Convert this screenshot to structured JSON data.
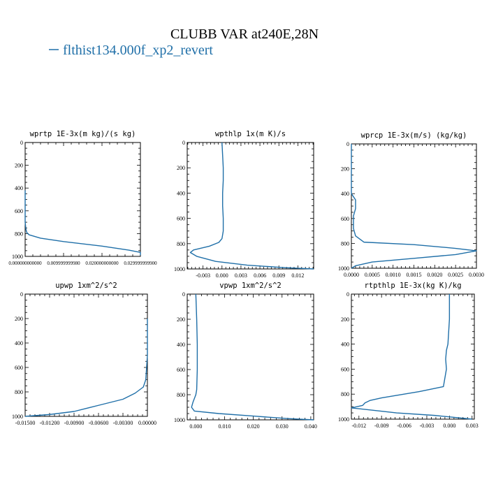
{
  "figure": {
    "title": "CLUBB VAR at240E,28N",
    "legend_entry": "flthist134.000f_xp2_revert",
    "line_color": "#1f6fa8"
  },
  "chart_data": [
    {
      "type": "line",
      "title": "wprtp  1E-3x(m kg)/(s kg)",
      "xlim": [
        0,
        0.03
      ],
      "ylim": [
        1000,
        0
      ],
      "xticks": [
        0,
        0.01,
        0.02,
        0.03
      ],
      "xtick_labels": [
        "0.000000000000",
        "0.009999999980",
        "0.020000000000",
        "0.029999999900"
      ],
      "yticks": [
        0,
        200,
        400,
        600,
        800,
        1000
      ],
      "ytick_labels": [
        "0",
        "200",
        "400",
        "600",
        "800",
        "1000"
      ],
      "series": [
        {
          "x": [
            0,
            0,
            0,
            0,
            0.0002,
            0.0004,
            0.001,
            0.004,
            0.01,
            0.02,
            0.027,
            0.03,
            0.03
          ],
          "y": [
            420,
            500,
            600,
            700,
            760,
            790,
            810,
            840,
            870,
            910,
            945,
            965,
            990
          ]
        }
      ]
    },
    {
      "type": "line",
      "title": "wpthlp  1x(m K)/s",
      "xlim": [
        -0.0055,
        0.0145
      ],
      "ylim": [
        1000,
        0
      ],
      "xticks": [
        -0.003,
        0,
        0.003,
        0.006,
        0.009,
        0.012
      ],
      "xtick_labels": [
        "-0.003",
        "0.000",
        "0.003",
        "0.006",
        "0.009",
        "0.012"
      ],
      "yticks": [
        0,
        200,
        400,
        600,
        800,
        1000
      ],
      "ytick_labels": [
        "0",
        "200",
        "400",
        "600",
        "800",
        "1000"
      ],
      "series": [
        {
          "x": [
            0,
            0.0001,
            0.0002,
            0.0002,
            0.0001,
            0.0001,
            0.0002,
            0.0002,
            0,
            -0.0005,
            -0.002,
            -0.0045,
            -0.005,
            -0.004,
            -0.001,
            0.004,
            0.01,
            0.0145
          ],
          "y": [
            0,
            100,
            200,
            300,
            400,
            500,
            600,
            700,
            760,
            790,
            820,
            850,
            870,
            900,
            940,
            970,
            990,
            1000
          ]
        }
      ]
    },
    {
      "type": "line",
      "title": "wprcp  1E-3x(m/s) (kg/kg)",
      "xlim": [
        0,
        0.003
      ],
      "ylim": [
        1000,
        0
      ],
      "xticks": [
        0,
        0.0005,
        0.001,
        0.0015,
        0.002,
        0.0025,
        0.003
      ],
      "xtick_labels": [
        "0.0000",
        "0.0005",
        "0.0010",
        "0.0015",
        "0.0020",
        "0.0025",
        "0.0030"
      ],
      "yticks": [
        0,
        200,
        400,
        600,
        800,
        1000
      ],
      "ytick_labels": [
        "0",
        "200",
        "400",
        "600",
        "800",
        "1000"
      ],
      "series": [
        {
          "x": [
            0,
            0,
            0.0001,
            0.0001,
            5e-05,
            5e-05,
            0.0001,
            0.0003,
            0.0015,
            0.0025,
            0.003,
            0.0025,
            0.0015,
            0.0005,
            0.0001,
            0
          ],
          "y": [
            0,
            400,
            450,
            520,
            580,
            680,
            740,
            790,
            810,
            840,
            860,
            890,
            920,
            950,
            980,
            1000
          ]
        }
      ]
    },
    {
      "type": "line",
      "title": "upwp  1xm^2/s^2",
      "xlim": [
        -0.015,
        0
      ],
      "ylim": [
        1000,
        0
      ],
      "xticks": [
        -0.015,
        -0.012,
        -0.009,
        -0.006,
        -0.003,
        0
      ],
      "xtick_labels": [
        "-0.01500",
        "-0.01200",
        "-0.00900",
        "-0.00600",
        "-0.00300",
        "0.00000"
      ],
      "yticks": [
        0,
        200,
        400,
        600,
        800,
        1000
      ],
      "ytick_labels": [
        "0",
        "200",
        "400",
        "600",
        "800",
        "1000"
      ],
      "series": [
        {
          "x": [
            0,
            0,
            -0.0001,
            -0.0002,
            -0.0005,
            -0.0015,
            -0.003,
            -0.006,
            -0.009,
            -0.012,
            -0.015
          ],
          "y": [
            200,
            500,
            600,
            700,
            760,
            810,
            860,
            910,
            960,
            985,
            1000
          ]
        }
      ]
    },
    {
      "type": "line",
      "title": "vpwp  1xm^2/s^2",
      "xlim": [
        -0.003,
        0.041
      ],
      "ylim": [
        1000,
        0
      ],
      "xticks": [
        0,
        0.01,
        0.02,
        0.03,
        0.04
      ],
      "xtick_labels": [
        "0.000",
        "0.010",
        "0.020",
        "0.030",
        "0.040"
      ],
      "yticks": [
        0,
        200,
        400,
        600,
        800,
        1000
      ],
      "ytick_labels": [
        "0",
        "200",
        "400",
        "600",
        "800",
        "1000"
      ],
      "series": [
        {
          "x": [
            0,
            0.0003,
            0.0005,
            0.0005,
            0.0003,
            0,
            -0.001,
            -0.0015,
            -0.0005,
            0.008,
            0.02,
            0.032,
            0.041
          ],
          "y": [
            0,
            200,
            400,
            600,
            760,
            800,
            860,
            900,
            930,
            950,
            970,
            990,
            1000
          ]
        }
      ]
    },
    {
      "type": "line",
      "title": "rtpthlp  1E-3x(kg K)/kg",
      "xlim": [
        -0.013,
        0.0033
      ],
      "ylim": [
        1000,
        0
      ],
      "xticks": [
        -0.012,
        -0.009,
        -0.006,
        -0.003,
        0,
        0.003
      ],
      "xtick_labels": [
        "-0.012",
        "-0.009",
        "-0.006",
        "-0.003",
        "0.000",
        "0.003"
      ],
      "yticks": [
        0,
        200,
        400,
        600,
        800,
        1000
      ],
      "ytick_labels": [
        "0",
        "200",
        "400",
        "600",
        "800",
        "1000"
      ],
      "series": [
        {
          "x": [
            0,
            0,
            -0.0002,
            -0.0004,
            -0.0005,
            -0.0004,
            -0.0008,
            -0.004,
            -0.009,
            -0.0105,
            -0.0112,
            -0.0115,
            -0.013,
            -0.01,
            -0.007,
            -0.002,
            0.003
          ],
          "y": [
            0,
            200,
            400,
            450,
            520,
            600,
            740,
            780,
            830,
            850,
            870,
            890,
            910,
            930,
            950,
            970,
            1000
          ]
        }
      ]
    }
  ]
}
